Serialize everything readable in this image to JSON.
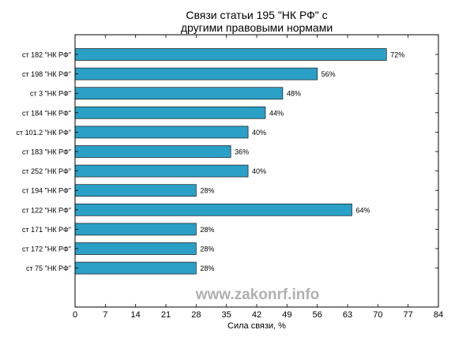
{
  "chart_data": {
    "type": "bar",
    "orientation": "horizontal",
    "title_line1": "Связи статьи 195 \"НК РФ\" с",
    "title_line2": "другими правовыми нормами",
    "xlabel": "Сила связи, %",
    "ylabel": "",
    "xlim": [
      0,
      84
    ],
    "xticks": [
      "0",
      "7",
      "14",
      "21",
      "28",
      "35",
      "42",
      "49",
      "56",
      "63",
      "70",
      "77",
      "84"
    ],
    "categories": [
      "ст 182 \"НК РФ\"",
      "ст 198 \"НК РФ\"",
      "ст 3 \"НК РФ\"",
      "ст 184 \"НК РФ\"",
      "ст 101.2 \"НК РФ\"",
      "ст 183 \"НК РФ\"",
      "ст 252 \"НК РФ\"",
      "ст 194 \"НК РФ\"",
      "ст 122 \"НК РФ\"",
      "ст 171 \"НК РФ\"",
      "ст 172 \"НК РФ\"",
      "ст 75 \"НК РФ\""
    ],
    "values": [
      72,
      56,
      48,
      44,
      40,
      36,
      40,
      28,
      64,
      28,
      28,
      28
    ],
    "value_labels": [
      "72%",
      "56%",
      "48%",
      "44%",
      "40%",
      "36%",
      "40%",
      "28%",
      "64%",
      "28%",
      "28%",
      "28%"
    ],
    "bar_color": "#2aa0c6",
    "grid": false,
    "legend": "none"
  },
  "watermark": {
    "text": "www.zakonrf.info",
    "color": "#b0b0b0"
  }
}
